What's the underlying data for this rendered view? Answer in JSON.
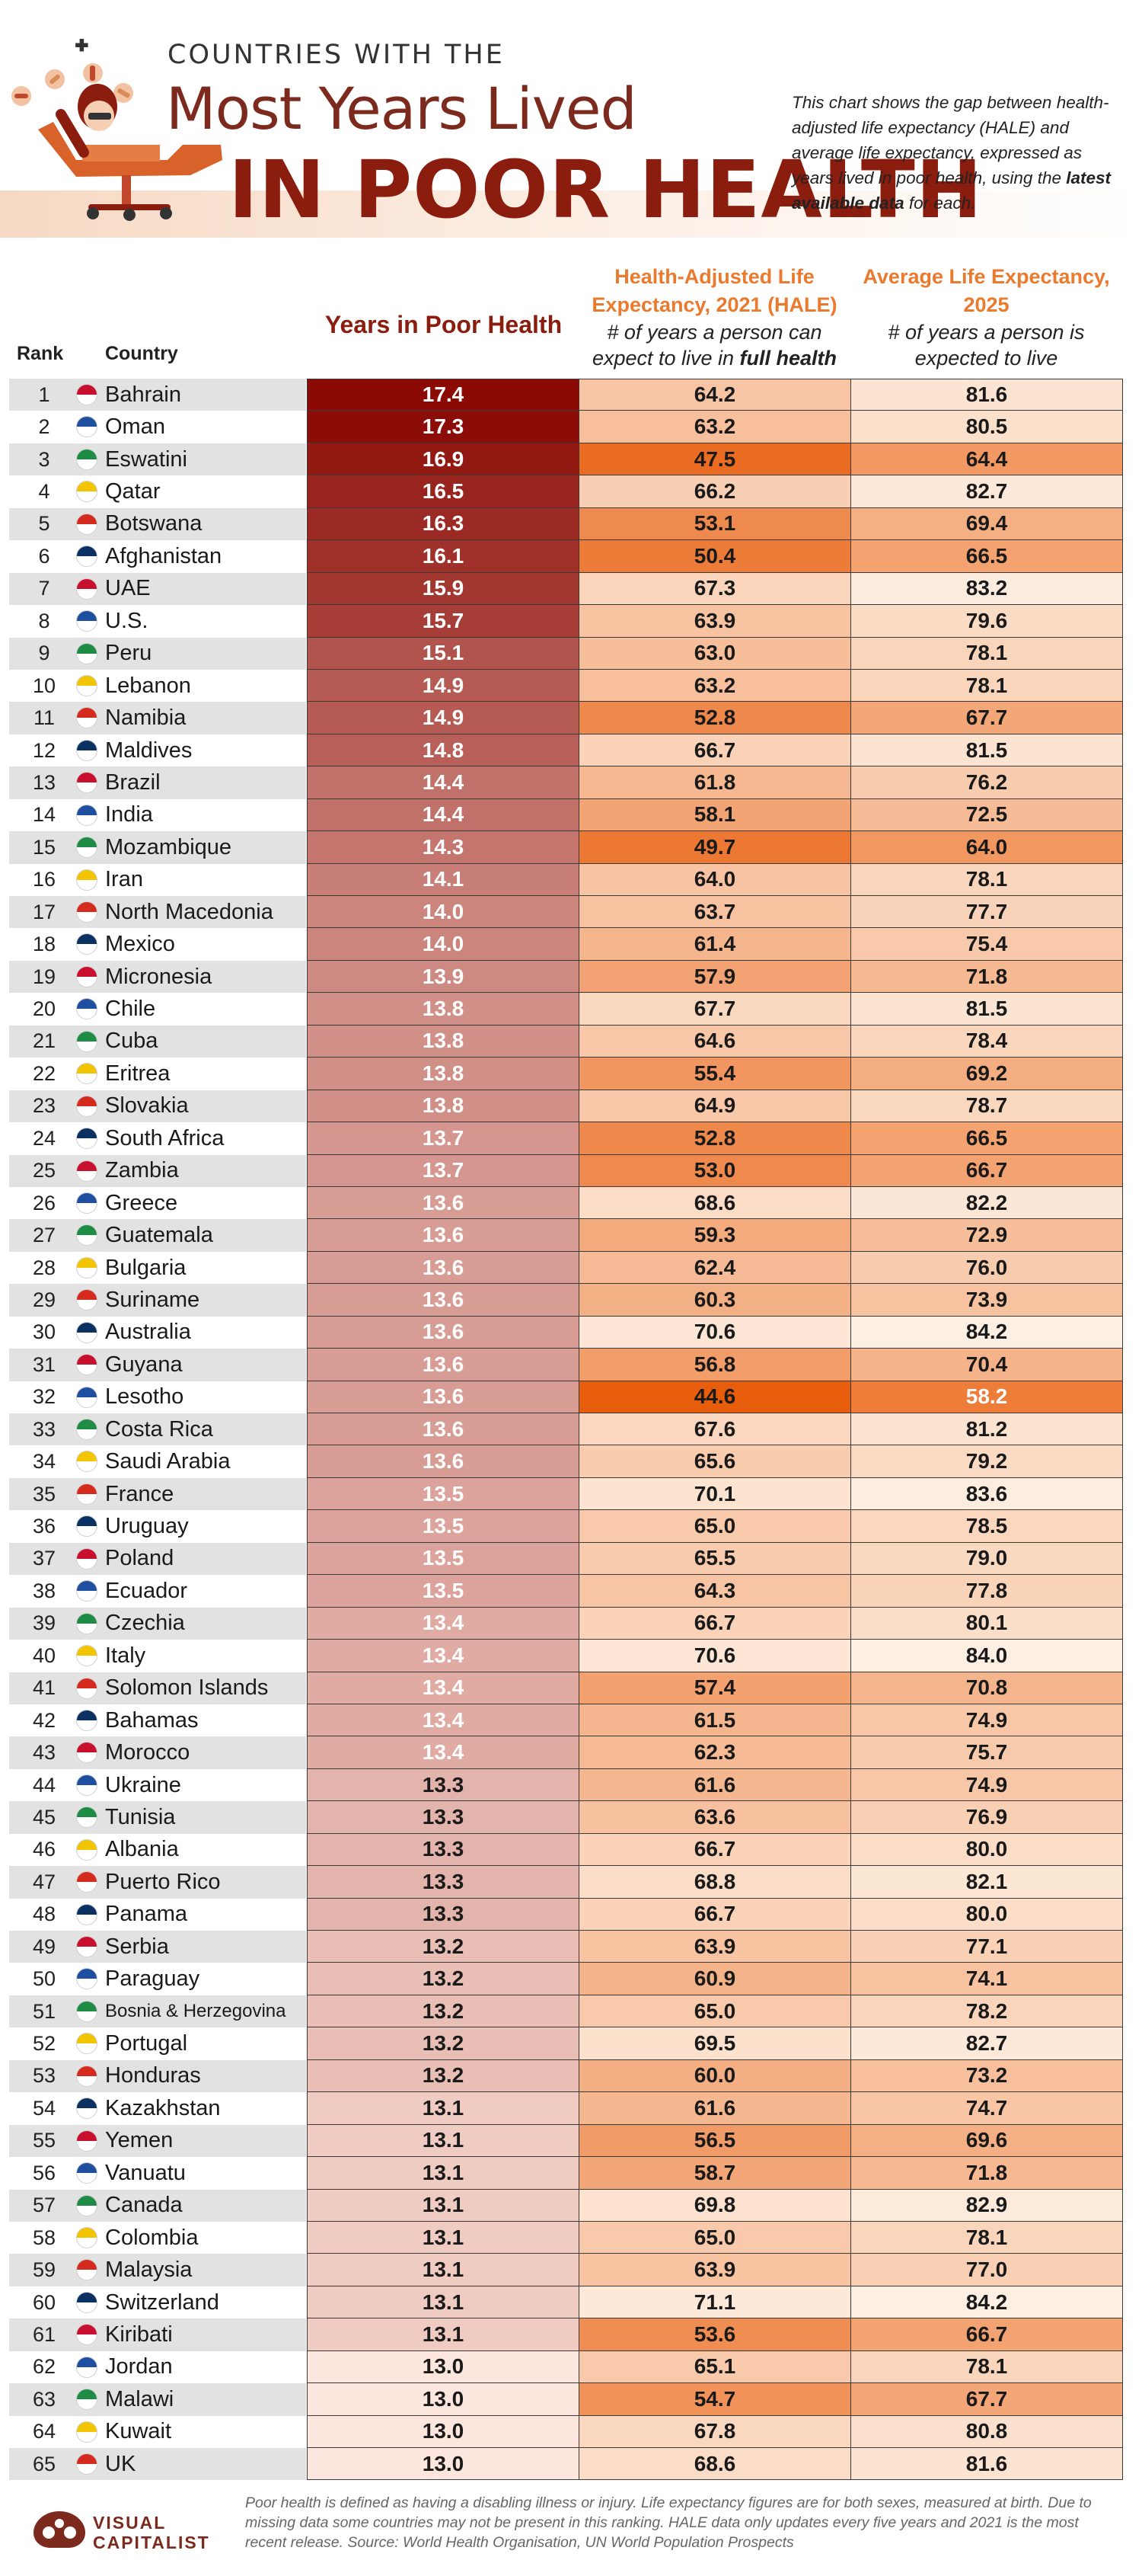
{
  "header": {
    "kicker": "COUNTRIES WITH THE",
    "title_line1": "Most Years Lived",
    "title_line2": "IN POOR HEALTH",
    "intro_part1": "This chart shows the gap between health-adjusted life expectancy (HALE) and average life expectancy, expressed as years lived in poor health, using the ",
    "intro_bold": "latest available data",
    "intro_part2": " for each."
  },
  "columns": {
    "rank": "Rank",
    "country": "Country",
    "years": "Years in Poor Health",
    "hale_title": "Health-Adjusted Life Expectancy, 2021 (HALE)",
    "hale_sub_pre": "# of years a person can expect to live in ",
    "hale_sub_bold": "full health",
    "life_title": "Average Life Expectancy, 2025",
    "life_sub": "# of years a person is expected to live"
  },
  "chart_data": {
    "type": "table",
    "columns": [
      "Rank",
      "Country",
      "Years in Poor Health",
      "Health-Adjusted Life Expectancy, 2021 (HALE)",
      "Average Life Expectancy, 2025"
    ],
    "rows": [
      {
        "rank": 1,
        "country": "Bahrain",
        "years": 17.4,
        "hale": 64.2,
        "life": 81.6
      },
      {
        "rank": 2,
        "country": "Oman",
        "years": 17.3,
        "hale": 63.2,
        "life": 80.5
      },
      {
        "rank": 3,
        "country": "Eswatini",
        "years": 16.9,
        "hale": 47.5,
        "life": 64.4
      },
      {
        "rank": 4,
        "country": "Qatar",
        "years": 16.5,
        "hale": 66.2,
        "life": 82.7
      },
      {
        "rank": 5,
        "country": "Botswana",
        "years": 16.3,
        "hale": 53.1,
        "life": 69.4
      },
      {
        "rank": 6,
        "country": "Afghanistan",
        "years": 16.1,
        "hale": 50.4,
        "life": 66.5
      },
      {
        "rank": 7,
        "country": "UAE",
        "years": 15.9,
        "hale": 67.3,
        "life": 83.2
      },
      {
        "rank": 8,
        "country": "U.S.",
        "years": 15.7,
        "hale": 63.9,
        "life": 79.6
      },
      {
        "rank": 9,
        "country": "Peru",
        "years": 15.1,
        "hale": 63.0,
        "life": 78.1
      },
      {
        "rank": 10,
        "country": "Lebanon",
        "years": 14.9,
        "hale": 63.2,
        "life": 78.1
      },
      {
        "rank": 11,
        "country": "Namibia",
        "years": 14.9,
        "hale": 52.8,
        "life": 67.7
      },
      {
        "rank": 12,
        "country": "Maldives",
        "years": 14.8,
        "hale": 66.7,
        "life": 81.5
      },
      {
        "rank": 13,
        "country": "Brazil",
        "years": 14.4,
        "hale": 61.8,
        "life": 76.2
      },
      {
        "rank": 14,
        "country": "India",
        "years": 14.4,
        "hale": 58.1,
        "life": 72.5
      },
      {
        "rank": 15,
        "country": "Mozambique",
        "years": 14.3,
        "hale": 49.7,
        "life": 64.0
      },
      {
        "rank": 16,
        "country": "Iran",
        "years": 14.1,
        "hale": 64.0,
        "life": 78.1
      },
      {
        "rank": 17,
        "country": "North Macedonia",
        "years": 14.0,
        "hale": 63.7,
        "life": 77.7
      },
      {
        "rank": 18,
        "country": "Mexico",
        "years": 14.0,
        "hale": 61.4,
        "life": 75.4
      },
      {
        "rank": 19,
        "country": "Micronesia",
        "years": 13.9,
        "hale": 57.9,
        "life": 71.8
      },
      {
        "rank": 20,
        "country": "Chile",
        "years": 13.8,
        "hale": 67.7,
        "life": 81.5
      },
      {
        "rank": 21,
        "country": "Cuba",
        "years": 13.8,
        "hale": 64.6,
        "life": 78.4
      },
      {
        "rank": 22,
        "country": "Eritrea",
        "years": 13.8,
        "hale": 55.4,
        "life": 69.2
      },
      {
        "rank": 23,
        "country": "Slovakia",
        "years": 13.8,
        "hale": 64.9,
        "life": 78.7
      },
      {
        "rank": 24,
        "country": "South Africa",
        "years": 13.7,
        "hale": 52.8,
        "life": 66.5
      },
      {
        "rank": 25,
        "country": "Zambia",
        "years": 13.7,
        "hale": 53.0,
        "life": 66.7
      },
      {
        "rank": 26,
        "country": "Greece",
        "years": 13.6,
        "hale": 68.6,
        "life": 82.2
      },
      {
        "rank": 27,
        "country": "Guatemala",
        "years": 13.6,
        "hale": 59.3,
        "life": 72.9
      },
      {
        "rank": 28,
        "country": "Bulgaria",
        "years": 13.6,
        "hale": 62.4,
        "life": 76.0
      },
      {
        "rank": 29,
        "country": "Suriname",
        "years": 13.6,
        "hale": 60.3,
        "life": 73.9
      },
      {
        "rank": 30,
        "country": "Australia",
        "years": 13.6,
        "hale": 70.6,
        "life": 84.2
      },
      {
        "rank": 31,
        "country": "Guyana",
        "years": 13.6,
        "hale": 56.8,
        "life": 70.4
      },
      {
        "rank": 32,
        "country": "Lesotho",
        "years": 13.6,
        "hale": 44.6,
        "life": 58.2
      },
      {
        "rank": 33,
        "country": "Costa Rica",
        "years": 13.6,
        "hale": 67.6,
        "life": 81.2
      },
      {
        "rank": 34,
        "country": "Saudi Arabia",
        "years": 13.6,
        "hale": 65.6,
        "life": 79.2
      },
      {
        "rank": 35,
        "country": "France",
        "years": 13.5,
        "hale": 70.1,
        "life": 83.6
      },
      {
        "rank": 36,
        "country": "Uruguay",
        "years": 13.5,
        "hale": 65.0,
        "life": 78.5
      },
      {
        "rank": 37,
        "country": "Poland",
        "years": 13.5,
        "hale": 65.5,
        "life": 79.0
      },
      {
        "rank": 38,
        "country": "Ecuador",
        "years": 13.5,
        "hale": 64.3,
        "life": 77.8
      },
      {
        "rank": 39,
        "country": "Czechia",
        "years": 13.4,
        "hale": 66.7,
        "life": 80.1
      },
      {
        "rank": 40,
        "country": "Italy",
        "years": 13.4,
        "hale": 70.6,
        "life": 84.0
      },
      {
        "rank": 41,
        "country": "Solomon Islands",
        "years": 13.4,
        "hale": 57.4,
        "life": 70.8
      },
      {
        "rank": 42,
        "country": "Bahamas",
        "years": 13.4,
        "hale": 61.5,
        "life": 74.9
      },
      {
        "rank": 43,
        "country": "Morocco",
        "years": 13.4,
        "hale": 62.3,
        "life": 75.7
      },
      {
        "rank": 44,
        "country": "Ukraine",
        "years": 13.3,
        "hale": 61.6,
        "life": 74.9
      },
      {
        "rank": 45,
        "country": "Tunisia",
        "years": 13.3,
        "hale": 63.6,
        "life": 76.9
      },
      {
        "rank": 46,
        "country": "Albania",
        "years": 13.3,
        "hale": 66.7,
        "life": 80.0
      },
      {
        "rank": 47,
        "country": "Puerto Rico",
        "years": 13.3,
        "hale": 68.8,
        "life": 82.1
      },
      {
        "rank": 48,
        "country": "Panama",
        "years": 13.3,
        "hale": 66.7,
        "life": 80.0
      },
      {
        "rank": 49,
        "country": "Serbia",
        "years": 13.2,
        "hale": 63.9,
        "life": 77.1
      },
      {
        "rank": 50,
        "country": "Paraguay",
        "years": 13.2,
        "hale": 60.9,
        "life": 74.1
      },
      {
        "rank": 51,
        "country": "Bosnia & Herzegovina",
        "years": 13.2,
        "hale": 65.0,
        "life": 78.2
      },
      {
        "rank": 52,
        "country": "Portugal",
        "years": 13.2,
        "hale": 69.5,
        "life": 82.7
      },
      {
        "rank": 53,
        "country": "Honduras",
        "years": 13.2,
        "hale": 60.0,
        "life": 73.2
      },
      {
        "rank": 54,
        "country": "Kazakhstan",
        "years": 13.1,
        "hale": 61.6,
        "life": 74.7
      },
      {
        "rank": 55,
        "country": "Yemen",
        "years": 13.1,
        "hale": 56.5,
        "life": 69.6
      },
      {
        "rank": 56,
        "country": "Vanuatu",
        "years": 13.1,
        "hale": 58.7,
        "life": 71.8
      },
      {
        "rank": 57,
        "country": "Canada",
        "years": 13.1,
        "hale": 69.8,
        "life": 82.9
      },
      {
        "rank": 58,
        "country": "Colombia",
        "years": 13.1,
        "hale": 65.0,
        "life": 78.1
      },
      {
        "rank": 59,
        "country": "Malaysia",
        "years": 13.1,
        "hale": 63.9,
        "life": 77.0
      },
      {
        "rank": 60,
        "country": "Switzerland",
        "years": 13.1,
        "hale": 71.1,
        "life": 84.2
      },
      {
        "rank": 61,
        "country": "Kiribati",
        "years": 13.1,
        "hale": 53.6,
        "life": 66.7
      },
      {
        "rank": 62,
        "country": "Jordan",
        "years": 13.0,
        "hale": 65.1,
        "life": 78.1
      },
      {
        "rank": 63,
        "country": "Malawi",
        "years": 13.0,
        "hale": 54.7,
        "life": 67.7
      },
      {
        "rank": 64,
        "country": "Kuwait",
        "years": 13.0,
        "hale": 67.8,
        "life": 80.8
      },
      {
        "rank": 65,
        "country": "UK",
        "years": 13.0,
        "hale": 68.6,
        "life": 81.6
      }
    ]
  },
  "colors": {
    "years_dark": "#8b0a04",
    "years_light": "#fde6dd",
    "hale_dark": "#e85d0c",
    "hale_light": "#fde9d9",
    "life_dark": "#ee7d3a",
    "life_light": "#fdf0e3",
    "title_red": "#8b1d0f",
    "accent_orange": "#ea7a2e"
  },
  "footer": {
    "logo_line1": "VISUAL",
    "logo_line2": "CAPITALIST",
    "note": "Poor health is defined as having a disabling illness or injury. Life expectancy figures are for both sexes, measured at birth. Due to missing data some countries may not be present in this ranking. HALE data only updates every five years and 2021 is the most recent release. Source: World Health Organisation, UN World Population Prospects"
  }
}
